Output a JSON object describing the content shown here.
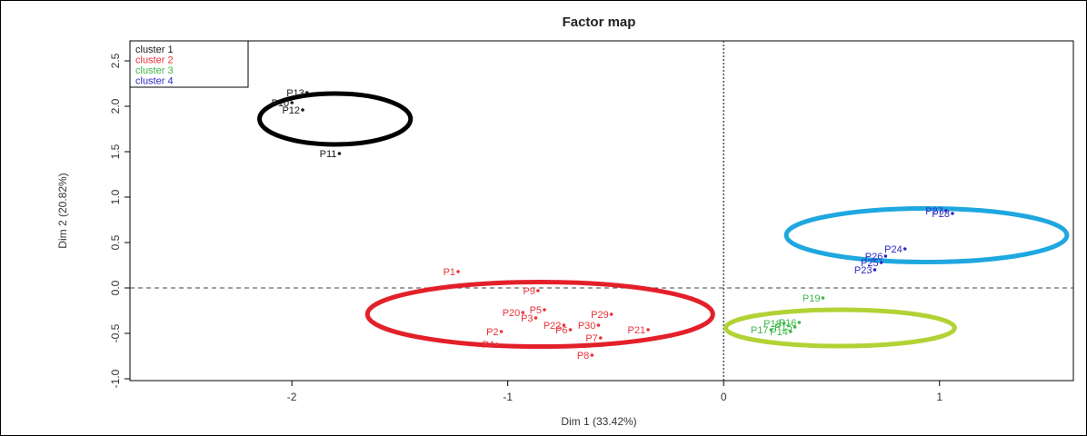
{
  "chart_data": {
    "type": "scatter",
    "title": "Factor map",
    "xlabel": "Dim 1 (33.42%)",
    "ylabel": "Dim 2 (20.82%)",
    "xlim": [
      -2.75,
      1.62
    ],
    "ylim": [
      -1.02,
      2.72
    ],
    "x_ticks": [
      -2,
      -1,
      0,
      1
    ],
    "y_ticks": [
      -1.0,
      -0.5,
      0.0,
      0.5,
      1.0,
      1.5,
      2.0,
      2.5
    ],
    "x_tick_labels": [
      "-2",
      "-1",
      "0",
      "1"
    ],
    "y_tick_labels": [
      "-1.0",
      "-0.5",
      "0.0",
      "0.5",
      "1.0",
      "1.5",
      "2.0",
      "2.5"
    ],
    "legend_position": "top-left",
    "reference_lines": {
      "vertical": 0,
      "horizontal": 0
    },
    "series": [
      {
        "name": "cluster 1",
        "color": "#1a1a1a",
        "ellipse_color": "#000000",
        "ellipse": {
          "cx": -1.8,
          "cy": 1.86,
          "rx": 0.7,
          "ry": 0.56
        },
        "points": [
          {
            "label": "P13",
            "x": -1.93,
            "y": 2.15
          },
          {
            "label": "P10",
            "x": -2.0,
            "y": 2.04
          },
          {
            "label": "P12",
            "x": -1.95,
            "y": 1.96
          },
          {
            "label": "P11",
            "x": -1.78,
            "y": 1.48
          }
        ]
      },
      {
        "name": "cluster 2",
        "color": "#e8333b",
        "ellipse_color": "#e3202a",
        "ellipse": {
          "cx": -0.85,
          "cy": -0.29,
          "rx": 1.6,
          "ry": 0.71
        },
        "points": [
          {
            "label": "P1",
            "x": -1.23,
            "y": 0.18
          },
          {
            "label": "P9",
            "x": -0.86,
            "y": -0.03
          },
          {
            "label": "P5",
            "x": -0.83,
            "y": -0.24
          },
          {
            "label": "P20",
            "x": -0.93,
            "y": -0.27
          },
          {
            "label": "P3",
            "x": -0.87,
            "y": -0.33
          },
          {
            "label": "P29",
            "x": -0.52,
            "y": -0.29
          },
          {
            "label": "P22",
            "x": -0.74,
            "y": -0.41
          },
          {
            "label": "P30",
            "x": -0.58,
            "y": -0.41
          },
          {
            "label": "P6",
            "x": -0.71,
            "y": -0.46
          },
          {
            "label": "P21",
            "x": -0.35,
            "y": -0.46
          },
          {
            "label": "P2",
            "x": -1.03,
            "y": -0.48
          },
          {
            "label": "P7",
            "x": -0.57,
            "y": -0.55
          },
          {
            "label": "P4",
            "x": -1.05,
            "y": -0.62
          },
          {
            "label": "P8",
            "x": -0.61,
            "y": -0.74
          }
        ]
      },
      {
        "name": "cluster 3",
        "color": "#3cb84a",
        "ellipse_color": "#b2d235",
        "ellipse": {
          "cx": 0.54,
          "cy": -0.44,
          "rx": 1.06,
          "ry": 0.4
        },
        "points": [
          {
            "label": "P19",
            "x": 0.46,
            "y": -0.11
          },
          {
            "label": "P18",
            "x": 0.28,
            "y": -0.39
          },
          {
            "label": "P16",
            "x": 0.35,
            "y": -0.38
          },
          {
            "label": "P15",
            "x": 0.33,
            "y": -0.43
          },
          {
            "label": "P17",
            "x": 0.22,
            "y": -0.46
          },
          {
            "label": "P14",
            "x": 0.31,
            "y": -0.48
          }
        ]
      },
      {
        "name": "cluster 4",
        "color": "#2b2bc4",
        "ellipse_color": "#1fa7e0",
        "ellipse": {
          "cx": 0.94,
          "cy": 0.58,
          "rx": 1.3,
          "ry": 0.59
        },
        "points": [
          {
            "label": "P27",
            "x": 1.03,
            "y": 0.85
          },
          {
            "label": "P28",
            "x": 1.06,
            "y": 0.82
          },
          {
            "label": "P24",
            "x": 0.84,
            "y": 0.43
          },
          {
            "label": "P26",
            "x": 0.75,
            "y": 0.35
          },
          {
            "label": "P25",
            "x": 0.73,
            "y": 0.28
          },
          {
            "label": "P23",
            "x": 0.7,
            "y": 0.2
          }
        ]
      }
    ]
  }
}
